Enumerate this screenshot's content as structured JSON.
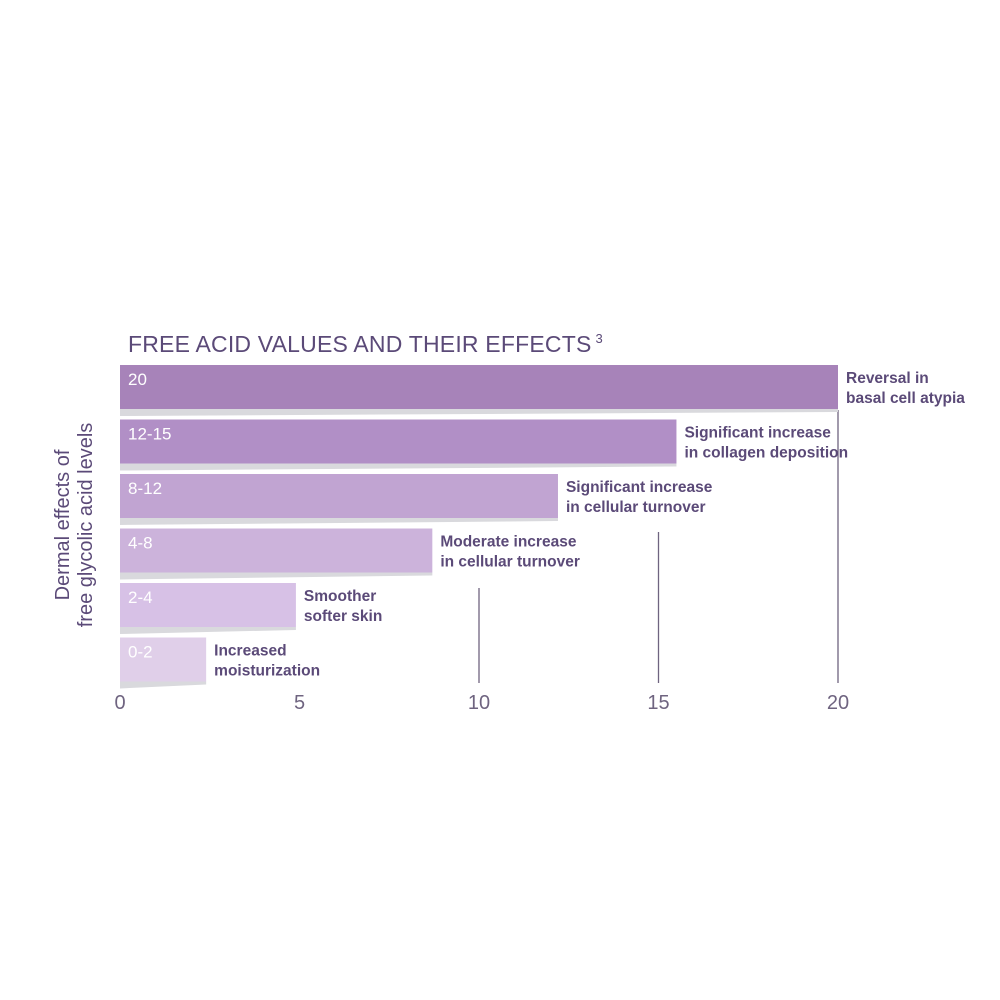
{
  "chart_data": {
    "type": "bar",
    "orientation": "horizontal",
    "title": "FREE ACID VALUES AND THEIR EFFECTS",
    "title_superscript": "3",
    "ylabel_lines": [
      "Dermal effects of",
      "free glycolic acid levels"
    ],
    "xlabel": "",
    "xlim": [
      0,
      20
    ],
    "xticks": [
      0,
      5,
      10,
      15,
      20
    ],
    "grid": "vertical lines at 10, 15 and 20",
    "categories": [
      "20",
      "12-15",
      "8-12",
      "4-8",
      "2-4",
      "0-2"
    ],
    "values": [
      20,
      15.5,
      12.2,
      8.7,
      4.9,
      2.4
    ],
    "annotations": [
      [
        "Reversal in",
        "basal cell atypia"
      ],
      [
        "Significant increase",
        "in collagen deposition"
      ],
      [
        "Significant increase",
        "in cellular turnover"
      ],
      [
        "Moderate increase",
        "in cellular turnover"
      ],
      [
        "Smoother",
        "softer skin"
      ],
      [
        "Increased",
        "moisturization"
      ]
    ],
    "colors": [
      "#a783b9",
      "#b18fc6",
      "#c1a4d2",
      "#ccb3db",
      "#d7c1e6",
      "#e0cfe9"
    ],
    "text_color": "#5b4a78",
    "bar_label_color": "#ffffff"
  }
}
